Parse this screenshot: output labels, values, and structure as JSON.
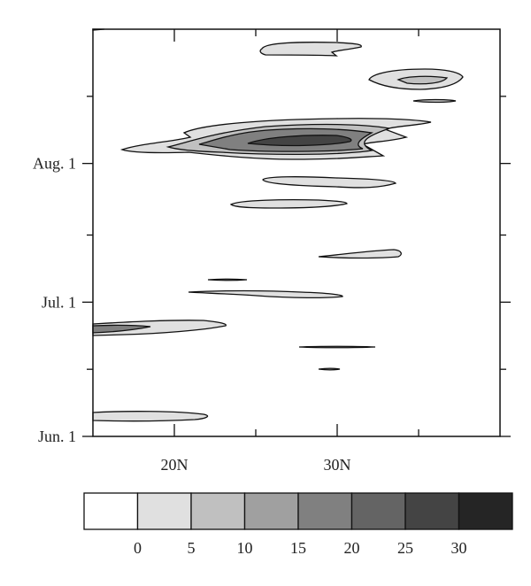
{
  "chart_data": {
    "type": "contour",
    "xlim": [
      15,
      40
    ],
    "xticks": [
      {
        "value": 20,
        "label": "20N"
      },
      {
        "value": 30,
        "label": "30N"
      }
    ],
    "minor_xticks": [
      25,
      35
    ],
    "ylim": [
      0,
      91
    ],
    "yticks": [
      {
        "value": 0,
        "label": "Jun. 1"
      },
      {
        "value": 30,
        "label": "Jul. 1"
      },
      {
        "value": 61,
        "label": "Aug. 1"
      }
    ],
    "minor_yticks": [
      15,
      45,
      76
    ],
    "colorbar": {
      "levels": [
        0,
        5,
        10,
        15,
        20,
        25,
        30
      ],
      "colors": [
        "#ffffff",
        "#e0e0e0",
        "#c0c0c0",
        "#a0a0a0",
        "#808080",
        "#646464",
        "#444444",
        "#252525"
      ]
    }
  }
}
